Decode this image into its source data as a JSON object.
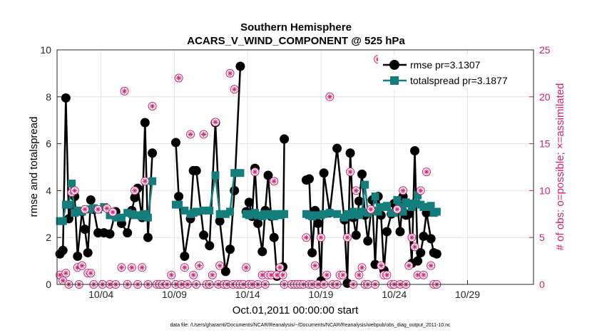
{
  "chart_data": {
    "type": "line",
    "title": "Southern Hemisphere",
    "subtitle": "ACARS_V_WIND_COMPONENT @ 525 hPa",
    "xlabel": "Oct.01,2011 00:00:00 start",
    "ylabel_left": "rmse and totalspread",
    "ylabel_right": "# of obs: o=possible; ×=assimilated",
    "xlim": [
      0.5,
      33
    ],
    "ylim_left": [
      0,
      10
    ],
    "ylim_right": [
      0,
      25
    ],
    "x_ticks": [
      3.5,
      8.5,
      13.5,
      18.5,
      23.5,
      28.5
    ],
    "x_tick_labels": [
      "10/04",
      "10/09",
      "10/14",
      "10/19",
      "10/24",
      "10/29"
    ],
    "y_ticks_left": [
      0,
      2,
      4,
      6,
      8,
      10
    ],
    "y_ticks_right": [
      0,
      5,
      10,
      15,
      20,
      25
    ],
    "grid": true,
    "colors": {
      "rmse": "#000000",
      "spread": "#137e7c",
      "obs": "#d6206e"
    },
    "series": [
      {
        "name": "rmse",
        "legend": "rmse pr=3.1307",
        "segments": [
          [
            [
              0.7,
              1.3
            ],
            [
              0.9,
              1.45
            ],
            [
              1.1,
              7.95
            ],
            [
              1.3,
              2.8
            ],
            [
              1.5,
              3.3
            ],
            [
              1.7,
              3.75
            ],
            [
              1.9,
              1.2
            ],
            [
              2.2,
              3.1
            ],
            [
              2.4,
              2.35
            ],
            [
              2.6,
              1.35
            ],
            [
              2.8,
              3.6
            ],
            [
              3.0,
              3.2
            ],
            [
              3.3,
              2.2
            ],
            [
              3.7,
              2.2
            ],
            [
              4.1,
              2.15
            ],
            [
              4.5,
              3.1
            ],
            [
              4.9,
              2.6
            ],
            [
              5.3,
              2.2
            ],
            [
              5.6,
              3.15
            ],
            [
              5.8,
              3.7
            ],
            [
              6.0,
              4.1
            ],
            [
              6.3,
              2.85
            ],
            [
              6.5,
              6.9
            ],
            [
              6.7,
              2.0
            ],
            [
              7.0,
              5.6
            ]
          ],
          [
            [
              8.6,
              6.05
            ],
            [
              8.8,
              3.75
            ],
            [
              9.2,
              1.2
            ],
            [
              9.6,
              2.8
            ],
            [
              9.8,
              4.85
            ],
            [
              10.0,
              4.85
            ],
            [
              10.5,
              2.1
            ],
            [
              10.9,
              1.65
            ],
            [
              11.3,
              6.9
            ],
            [
              11.6,
              2.7
            ],
            [
              12.0,
              0.55
            ],
            [
              12.3,
              1.5
            ],
            [
              12.6,
              4.0
            ],
            [
              13.0,
              9.3
            ]
          ],
          [
            [
              13.4,
              3.1
            ],
            [
              13.6,
              3.5
            ],
            [
              13.8,
              2.9
            ],
            [
              14.0,
              4.95
            ],
            [
              14.2,
              2.6
            ],
            [
              14.5,
              1.4
            ],
            [
              14.7,
              3.15
            ],
            [
              14.9,
              4.65
            ],
            [
              15.1,
              2.9
            ],
            [
              15.3,
              2.0
            ],
            [
              15.5,
              0.35
            ],
            [
              15.7,
              0.65
            ],
            [
              15.9,
              0.75
            ],
            [
              16.0,
              6.2
            ]
          ],
          [
            [
              17.5,
              4.45
            ],
            [
              17.7,
              4.5
            ],
            [
              17.9,
              1.35
            ],
            [
              18.1,
              3.15
            ],
            [
              18.3,
              2.6
            ],
            [
              18.5,
              0.15
            ],
            [
              18.7,
              4.75
            ],
            [
              19.1,
              3.05
            ],
            [
              19.6,
              5.8
            ],
            [
              20.1,
              2.75
            ],
            [
              20.3,
              0.05
            ],
            [
              20.5,
              5.6
            ],
            [
              20.7,
              2.85
            ],
            [
              20.9,
              2.1
            ],
            [
              21.1,
              3.55
            ],
            [
              21.3,
              4.7
            ],
            [
              21.5,
              2.95
            ],
            [
              21.7,
              1.85
            ],
            [
              22.0,
              3.6
            ],
            [
              22.2,
              0.85
            ],
            [
              22.4,
              3.75
            ],
            [
              22.6,
              2.95
            ],
            [
              22.8,
              0.6
            ],
            [
              23.0,
              2.25
            ],
            [
              23.3,
              3.0
            ],
            [
              23.5,
              3.45
            ],
            [
              23.7,
              3.45
            ],
            [
              23.9,
              2.25
            ],
            [
              24.1,
              3.75
            ],
            [
              24.3,
              2.95
            ],
            [
              24.5,
              3.0
            ],
            [
              24.7,
              0.9
            ],
            [
              24.9,
              5.7
            ],
            [
              25.1,
              1.0
            ],
            [
              25.3,
              1.35
            ],
            [
              25.5,
              2.05
            ],
            [
              25.7,
              3.05
            ],
            [
              26.0,
              1.95
            ],
            [
              26.2,
              1.35
            ],
            [
              26.4,
              1.3
            ]
          ]
        ]
      },
      {
        "name": "totalspread",
        "legend": "totalspread pr=3.1877",
        "segments": [
          [
            [
              0.7,
              2.7
            ],
            [
              0.9,
              2.7
            ],
            [
              1.1,
              3.4
            ],
            [
              1.3,
              3.4
            ],
            [
              1.5,
              4.3
            ],
            [
              1.7,
              3.05
            ],
            [
              1.9,
              3.15
            ],
            [
              2.2,
              3.1
            ],
            [
              2.5,
              3.2
            ],
            [
              2.7,
              3.2
            ],
            [
              3.0,
              3.25
            ],
            [
              3.3,
              3.2
            ],
            [
              3.7,
              3.3
            ],
            [
              4.1,
              2.95
            ],
            [
              4.5,
              2.85
            ],
            [
              4.9,
              2.85
            ],
            [
              5.3,
              3.05
            ],
            [
              5.6,
              3.0
            ],
            [
              5.8,
              2.95
            ],
            [
              6.0,
              2.95
            ],
            [
              6.3,
              2.9
            ],
            [
              6.5,
              3.0
            ],
            [
              6.7,
              2.85
            ],
            [
              7.0,
              4.4
            ]
          ],
          [
            [
              8.6,
              3.4
            ],
            [
              8.8,
              3.4
            ],
            [
              9.2,
              3.15
            ],
            [
              9.6,
              3.0
            ],
            [
              9.8,
              3.05
            ],
            [
              10.0,
              3.1
            ],
            [
              10.5,
              3.15
            ],
            [
              10.9,
              3.15
            ],
            [
              11.3,
              4.65
            ],
            [
              11.6,
              3.0
            ],
            [
              12.0,
              3.0
            ],
            [
              12.3,
              3.1
            ],
            [
              12.6,
              4.75
            ],
            [
              13.0,
              4.75
            ]
          ],
          [
            [
              13.4,
              3.0
            ],
            [
              13.6,
              2.95
            ],
            [
              13.8,
              3.0
            ],
            [
              14.0,
              3.05
            ],
            [
              14.2,
              2.95
            ],
            [
              14.5,
              2.9
            ],
            [
              14.7,
              3.0
            ],
            [
              14.9,
              2.95
            ],
            [
              15.1,
              3.0
            ],
            [
              15.3,
              2.9
            ],
            [
              15.5,
              3.0
            ],
            [
              15.7,
              2.95
            ],
            [
              15.9,
              3.0
            ],
            [
              16.0,
              3.0
            ]
          ],
          [
            [
              17.5,
              3.0
            ],
            [
              17.7,
              2.95
            ],
            [
              17.9,
              2.9
            ],
            [
              18.1,
              2.95
            ],
            [
              18.3,
              2.95
            ],
            [
              18.5,
              2.95
            ],
            [
              18.7,
              3.0
            ],
            [
              19.1,
              3.05
            ],
            [
              19.6,
              3.0
            ],
            [
              20.1,
              2.85
            ],
            [
              20.3,
              3.0
            ],
            [
              20.5,
              2.95
            ],
            [
              20.7,
              3.1
            ],
            [
              20.9,
              3.0
            ],
            [
              21.1,
              2.95
            ],
            [
              21.3,
              3.1
            ],
            [
              21.5,
              4.25
            ],
            [
              21.7,
              3.05
            ],
            [
              22.0,
              3.15
            ],
            [
              22.2,
              3.75
            ],
            [
              22.4,
              3.1
            ],
            [
              22.6,
              3.3
            ],
            [
              22.8,
              3.3
            ],
            [
              23.0,
              3.35
            ],
            [
              23.3,
              3.05
            ],
            [
              23.5,
              3.05
            ],
            [
              23.7,
              3.6
            ],
            [
              23.9,
              3.3
            ],
            [
              24.1,
              3.1
            ],
            [
              24.3,
              3.5
            ],
            [
              24.5,
              3.45
            ],
            [
              24.7,
              3.3
            ],
            [
              24.9,
              3.45
            ],
            [
              25.1,
              3.8
            ],
            [
              25.3,
              3.4
            ],
            [
              25.5,
              3.3
            ],
            [
              25.7,
              3.3
            ],
            [
              26.0,
              3.35
            ],
            [
              26.2,
              3.05
            ],
            [
              26.4,
              3.1
            ]
          ]
        ]
      }
    ],
    "obs_possible": [
      [
        0.7,
        1
      ],
      [
        0.9,
        0.4
      ],
      [
        1.1,
        1.2
      ],
      [
        1.3,
        0
      ],
      [
        1.5,
        9.8
      ],
      [
        1.7,
        10
      ],
      [
        1.9,
        1.8
      ],
      [
        2.0,
        0
      ],
      [
        2.2,
        2
      ],
      [
        2.4,
        8
      ],
      [
        2.6,
        1.2
      ],
      [
        2.8,
        1.2
      ],
      [
        3.0,
        0
      ],
      [
        3.3,
        8
      ],
      [
        3.6,
        0
      ],
      [
        3.9,
        8.1
      ],
      [
        4.1,
        0
      ],
      [
        4.3,
        7.7
      ],
      [
        4.5,
        0
      ],
      [
        4.9,
        1.8
      ],
      [
        5.1,
        20.6
      ],
      [
        5.3,
        0
      ],
      [
        5.6,
        1.8
      ],
      [
        5.8,
        10
      ],
      [
        6.0,
        0
      ],
      [
        6.3,
        1.8
      ],
      [
        6.5,
        11
      ],
      [
        6.7,
        0
      ],
      [
        7.0,
        19
      ],
      [
        7.3,
        0
      ],
      [
        7.5,
        0
      ],
      [
        7.7,
        0
      ],
      [
        8.0,
        0
      ],
      [
        8.3,
        1
      ],
      [
        8.6,
        0
      ],
      [
        8.8,
        22
      ],
      [
        9.0,
        0
      ],
      [
        9.2,
        1.8
      ],
      [
        9.4,
        0
      ],
      [
        9.6,
        16
      ],
      [
        9.8,
        1
      ],
      [
        10.0,
        0
      ],
      [
        10.2,
        2
      ],
      [
        10.5,
        16
      ],
      [
        10.7,
        0
      ],
      [
        10.9,
        0
      ],
      [
        11.1,
        1
      ],
      [
        11.3,
        17.3
      ],
      [
        11.5,
        0
      ],
      [
        11.6,
        2
      ],
      [
        11.9,
        0
      ],
      [
        12.1,
        0
      ],
      [
        12.3,
        22.5
      ],
      [
        12.5,
        0
      ],
      [
        12.6,
        20.8
      ],
      [
        12.8,
        0
      ],
      [
        13.0,
        0
      ],
      [
        13.2,
        0
      ],
      [
        13.4,
        1.8
      ],
      [
        13.6,
        0
      ],
      [
        13.8,
        0
      ],
      [
        14.0,
        12
      ],
      [
        14.2,
        0
      ],
      [
        14.5,
        1
      ],
      [
        14.7,
        0
      ],
      [
        14.9,
        1
      ],
      [
        15.1,
        1
      ],
      [
        15.3,
        11
      ],
      [
        15.5,
        1
      ],
      [
        15.7,
        1.8
      ],
      [
        15.9,
        1
      ],
      [
        16.0,
        0
      ],
      [
        16.5,
        0
      ],
      [
        16.7,
        0
      ],
      [
        16.9,
        0
      ],
      [
        17.1,
        0
      ],
      [
        17.3,
        0
      ],
      [
        17.5,
        5
      ],
      [
        17.7,
        0
      ],
      [
        17.9,
        0
      ],
      [
        18.1,
        2
      ],
      [
        18.3,
        0
      ],
      [
        18.5,
        5
      ],
      [
        18.7,
        0
      ],
      [
        18.9,
        1
      ],
      [
        19.1,
        20
      ],
      [
        19.3,
        0
      ],
      [
        19.6,
        0
      ],
      [
        19.8,
        1
      ],
      [
        20.0,
        1
      ],
      [
        20.3,
        5
      ],
      [
        20.5,
        12
      ],
      [
        20.7,
        0
      ],
      [
        20.9,
        10
      ],
      [
        21.1,
        1
      ],
      [
        21.3,
        1.8
      ],
      [
        21.5,
        0
      ],
      [
        21.7,
        0
      ],
      [
        21.9,
        8
      ],
      [
        22.2,
        0
      ],
      [
        22.4,
        24
      ],
      [
        22.6,
        2
      ],
      [
        22.8,
        1
      ],
      [
        23.0,
        1
      ],
      [
        23.3,
        0
      ],
      [
        23.5,
        0
      ],
      [
        23.7,
        8
      ],
      [
        23.9,
        0
      ],
      [
        24.1,
        10
      ],
      [
        24.3,
        0
      ],
      [
        24.5,
        2
      ],
      [
        24.7,
        5
      ],
      [
        24.9,
        4
      ],
      [
        25.1,
        1
      ],
      [
        25.3,
        10
      ],
      [
        25.5,
        1
      ],
      [
        25.7,
        12
      ],
      [
        26.0,
        2
      ],
      [
        26.2,
        0
      ],
      [
        26.4,
        0
      ]
    ]
  },
  "legend": {
    "rmse_label": "rmse pr=3.1307",
    "spread_label": "totalspread pr=3.1877"
  },
  "footer": {
    "data_file": "data file: /Users/gharamti/Documents/NCAR/Reanalysis/~/Documents/NCAR/Reanalysis/webpub/obs_diag_output_2011-10.nc"
  }
}
